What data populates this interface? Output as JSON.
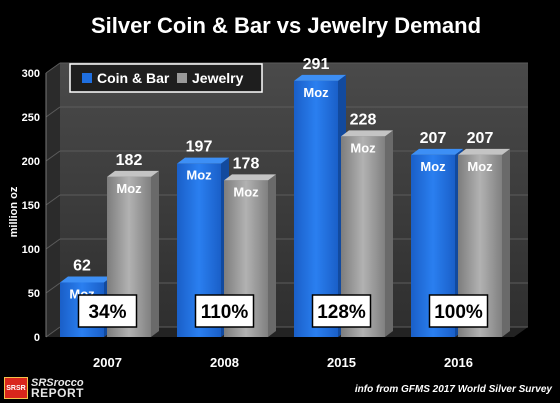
{
  "chart_data": {
    "type": "bar",
    "title": "Silver Coin & Bar vs Jewelry Demand",
    "ylabel": "million oz",
    "xlabel": "",
    "ylim": [
      0,
      300
    ],
    "yticks": [
      "0",
      "50",
      "100",
      "150",
      "200",
      "250",
      "300"
    ],
    "categories": [
      "2007",
      "2008",
      "2015",
      "2016"
    ],
    "series": [
      {
        "name": "Coin & Bar",
        "values": [
          62,
          197,
          291,
          207
        ],
        "color": "#1f6fe0"
      },
      {
        "name": "Jewelry",
        "values": [
          182,
          178,
          228,
          207
        ],
        "color": "#9a9a9a"
      }
    ],
    "value_labels": {
      "Coin & Bar": [
        "62",
        "197",
        "291",
        "207"
      ],
      "Jewelry": [
        "182",
        "178",
        "228",
        "207"
      ]
    },
    "unit_label": "Moz",
    "ratio_labels": [
      "34%",
      "110%",
      "128%",
      "100%"
    ],
    "legend_position": "top-left",
    "grid": true
  },
  "logo": {
    "badge": "SRSR",
    "line1": "SRSrocco",
    "line2": "REPORT"
  },
  "source_note": "info from GFMS 2017 World Silver Survey",
  "colors": {
    "background": "#000000",
    "wall": "#3d3d3d",
    "floor": "#2a2a2a",
    "coin": "#1f6fe0",
    "jewelry": "#9a9a9a"
  }
}
